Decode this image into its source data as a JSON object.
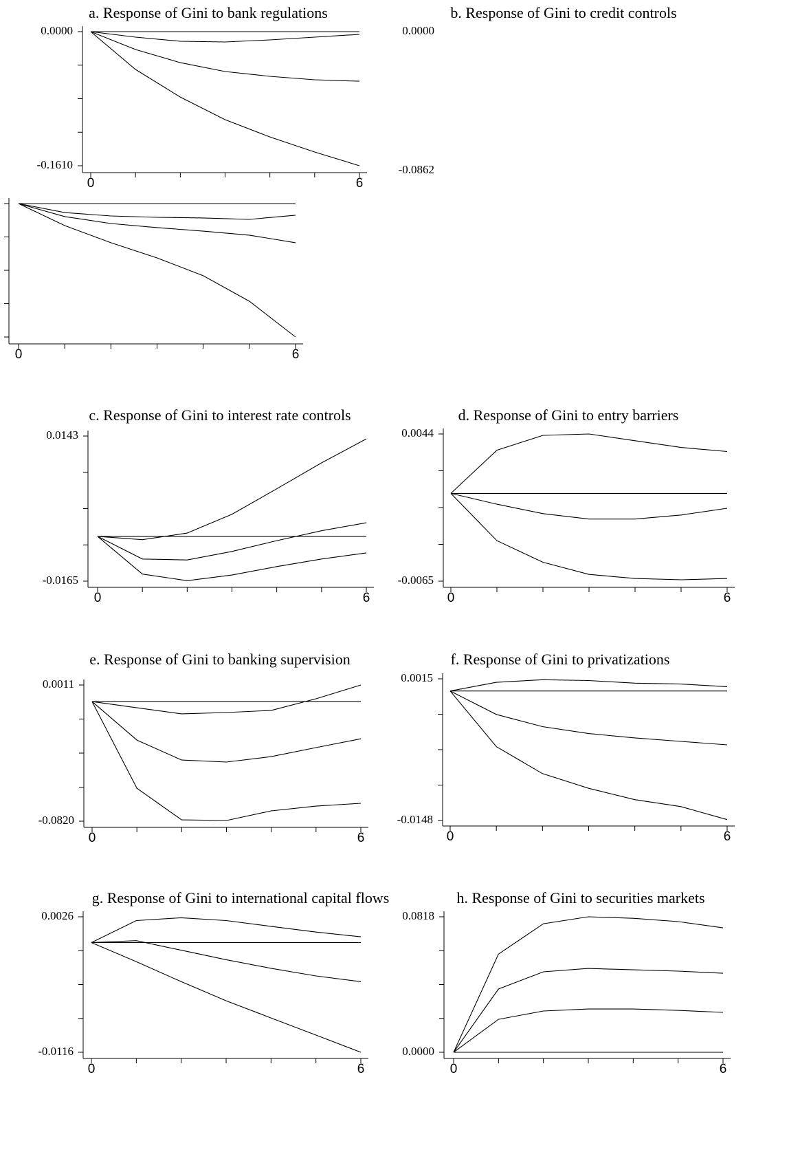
{
  "chart_data": [
    {
      "type": "line",
      "title": "a. Response of Gini to bank regulations",
      "color": "#000000",
      "x": [
        0,
        1,
        2,
        3,
        4,
        5,
        6
      ],
      "xlim": [
        0,
        6
      ],
      "xticks": [
        0,
        6
      ],
      "ylim": [
        -0.161,
        0
      ],
      "yticks": [
        {
          "value": 0,
          "label": "0.0000"
        },
        {
          "value": -0.161,
          "label": "-0.1610"
        }
      ],
      "series": [
        {
          "values": [
            0,
            0,
            0,
            0,
            0,
            0,
            0
          ]
        },
        {
          "values": [
            0,
            -0.0066,
            -0.0116,
            -0.0124,
            -0.0099,
            -0.0066,
            -0.0033
          ]
        },
        {
          "values": [
            0,
            -0.0215,
            -0.0372,
            -0.0479,
            -0.0537,
            -0.0578,
            -0.0595
          ]
        },
        {
          "values": [
            0,
            -0.0454,
            -0.0785,
            -0.1057,
            -0.1264,
            -0.1445,
            -0.161
          ]
        }
      ]
    },
    {
      "type": "line",
      "title": "b. Response of Gini to credit controls",
      "color": "#000000",
      "x": [
        0,
        1,
        2,
        3,
        4,
        5,
        6
      ],
      "xlim": [
        0,
        6
      ],
      "xticks": [
        0,
        6
      ],
      "ylim": [
        -0.0862,
        0
      ],
      "yticks": [
        {
          "value": 0,
          "label": "0.0000"
        },
        -0.0862
      ],
      "series": [
        {
          "values": [
            0,
            0,
            0,
            0,
            0,
            0,
            0
          ]
        },
        {
          "values": [
            0,
            -0.0058,
            -0.008,
            -0.0089,
            -0.0093,
            -0.0102,
            -0.0075
          ]
        },
        {
          "values": [
            0,
            -0.0084,
            -0.0129,
            -0.0155,
            -0.0178,
            -0.0204,
            -0.0253
          ]
        },
        {
          "values": [
            0,
            -0.0142,
            -0.0253,
            -0.0351,
            -0.0466,
            -0.0631,
            -0.0862
          ]
        }
      ]
    },
    {
      "type": "line",
      "title": "c. Response of Gini to interest rate controls",
      "color": "#000000",
      "x": [
        0,
        1,
        2,
        3,
        4,
        5,
        6
      ],
      "xlim": [
        0,
        6
      ],
      "xticks": [
        0,
        6
      ],
      "ylim": [
        -0.0165,
        0.0143
      ],
      "yticks": [
        0.0143,
        -0.0165
      ],
      "series": [
        {
          "values": [
            -0.007,
            -0.0077,
            -0.0063,
            -0.0023,
            0.0031,
            0.0086,
            0.0137
          ]
        },
        {
          "values": [
            -0.007,
            -0.007,
            -0.007,
            -0.007,
            -0.007,
            -0.007,
            -0.007
          ]
        },
        {
          "values": [
            -0.007,
            -0.0118,
            -0.012,
            -0.0102,
            -0.0079,
            -0.0058,
            -0.0041
          ]
        },
        {
          "values": [
            -0.007,
            -0.015,
            -0.0164,
            -0.0152,
            -0.0134,
            -0.0118,
            -0.0105
          ]
        }
      ]
    },
    {
      "type": "line",
      "title": "d. Response of Gini to entry barriers",
      "color": "#000000",
      "x": [
        0,
        1,
        2,
        3,
        4,
        5,
        6
      ],
      "xlim": [
        0,
        6
      ],
      "xticks": [
        0,
        6
      ],
      "ylim": [
        -0.0065,
        0.0044
      ],
      "yticks": [
        0.0044,
        -0.0065
      ],
      "series": [
        {
          "values": [
            0,
            0.0032,
            0.0043,
            0.0044,
            0.0039,
            0.0034,
            0.0031
          ]
        },
        {
          "values": [
            0,
            0,
            0,
            0,
            0,
            0,
            0
          ]
        },
        {
          "values": [
            0,
            -0.0008,
            -0.0015,
            -0.0019,
            -0.0019,
            -0.0016,
            -0.0011
          ]
        },
        {
          "values": [
            0,
            -0.0035,
            -0.0051,
            -0.006,
            -0.0063,
            -0.0064,
            -0.0063
          ]
        }
      ]
    },
    {
      "type": "line",
      "title": "e. Response of Gini to banking supervision",
      "color": "#000000",
      "x": [
        0,
        1,
        2,
        3,
        4,
        5,
        6
      ],
      "xlim": [
        0,
        6
      ],
      "xticks": [
        0,
        6
      ],
      "ylim": [
        -0.082,
        0.0011
      ],
      "yticks": [
        0.0011,
        {
          "value": -0.082,
          "label": "-0.0820"
        }
      ],
      "series": [
        {
          "values": [
            -0.009,
            -0.0128,
            -0.0165,
            -0.0157,
            -0.0144,
            -0.0073,
            0.0011
          ]
        },
        {
          "values": [
            -0.009,
            -0.009,
            -0.009,
            -0.009,
            -0.009,
            -0.009,
            -0.009
          ]
        },
        {
          "values": [
            -0.009,
            -0.0325,
            -0.0447,
            -0.0459,
            -0.0426,
            -0.0371,
            -0.0317
          ]
        },
        {
          "values": [
            -0.009,
            -0.0619,
            -0.0812,
            -0.0816,
            -0.0757,
            -0.0728,
            -0.0711
          ]
        }
      ]
    },
    {
      "type": "line",
      "title": "f. Response of Gini to privatizations",
      "color": "#000000",
      "x": [
        0,
        1,
        2,
        3,
        4,
        5,
        6
      ],
      "xlim": [
        0,
        6
      ],
      "xticks": [
        0,
        6
      ],
      "ylim": [
        -0.0148,
        0.0015
      ],
      "yticks": [
        0.0015,
        -0.0148
      ],
      "series": [
        {
          "values": [
            0.0001,
            0.0011,
            0.0014,
            0.0013,
            0.001,
            0.0009,
            0.0006
          ]
        },
        {
          "values": [
            0.0001,
            0.0001,
            0.0001,
            0.0001,
            0.0001,
            0.0001,
            0.0001
          ]
        },
        {
          "values": [
            0.0001,
            -0.0026,
            -0.004,
            -0.0048,
            -0.0053,
            -0.0057,
            -0.0061
          ]
        },
        {
          "values": [
            0.0001,
            -0.0063,
            -0.0094,
            -0.0111,
            -0.0124,
            -0.0132,
            -0.0147
          ]
        }
      ]
    },
    {
      "type": "line",
      "title": "g. Response of Gini to international capital flows",
      "color": "#000000",
      "x": [
        0,
        1,
        2,
        3,
        4,
        5,
        6
      ],
      "xlim": [
        0,
        6
      ],
      "xticks": [
        0,
        6
      ],
      "ylim": [
        -0.0116,
        0.0026
      ],
      "yticks": [
        0.0026,
        -0.0116
      ],
      "series": [
        {
          "values": [
            -0.0001,
            0.0022,
            0.0025,
            0.0022,
            0.0016,
            0.001,
            0.0005
          ]
        },
        {
          "values": [
            -0.0001,
            -0.0001,
            -0.0001,
            -0.0001,
            -0.0001,
            -0.0001,
            -0.0001
          ]
        },
        {
          "values": [
            -0.0001,
            0.0001,
            -0.0009,
            -0.0019,
            -0.0028,
            -0.0036,
            -0.0042
          ]
        },
        {
          "values": [
            -0.0001,
            -0.0021,
            -0.0042,
            -0.0062,
            -0.008,
            -0.0098,
            -0.0116
          ]
        }
      ]
    },
    {
      "type": "line",
      "title": "h. Response of Gini to securities markets",
      "color": "#000000",
      "x": [
        0,
        1,
        2,
        3,
        4,
        5,
        6
      ],
      "xlim": [
        0,
        6
      ],
      "xticks": [
        0,
        6
      ],
      "ylim": [
        0,
        0.0818
      ],
      "yticks": [
        0.0818,
        {
          "value": 0,
          "label": "0.0000"
        }
      ],
      "series": [
        {
          "values": [
            0,
            0.0593,
            0.0776,
            0.0818,
            0.0809,
            0.0789,
            0.0751
          ]
        },
        {
          "values": [
            0,
            0.0382,
            0.0486,
            0.0506,
            0.0498,
            0.049,
            0.0477
          ]
        },
        {
          "values": [
            0,
            0.0199,
            0.0249,
            0.0261,
            0.0261,
            0.0253,
            0.0241
          ]
        },
        {
          "values": [
            0,
            0,
            0,
            0,
            0,
            0,
            0
          ]
        }
      ]
    }
  ]
}
